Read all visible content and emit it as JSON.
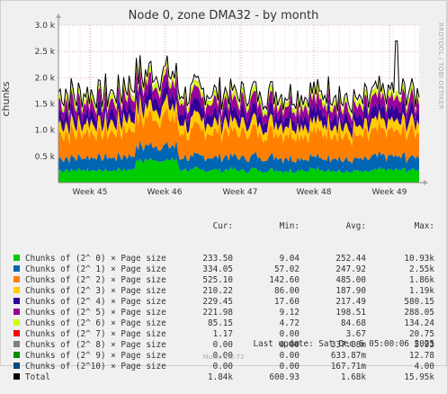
{
  "chart_data": {
    "type": "area",
    "title": "Node 0, zone DMA32 - by month",
    "ylabel": "chunks",
    "ylim": [
      0,
      3000
    ],
    "yticks": [
      {
        "value": 500,
        "label": "0.5 k"
      },
      {
        "value": 1000,
        "label": "1.0 k"
      },
      {
        "value": 1500,
        "label": "1.5 k"
      },
      {
        "value": 2000,
        "label": "2.0 k"
      },
      {
        "value": 2500,
        "label": "2.5 k"
      },
      {
        "value": 3000,
        "label": "3.0 k"
      }
    ],
    "xticks": [
      "Week 45",
      "Week 46",
      "Week 47",
      "Week 48",
      "Week 49"
    ],
    "grid": true,
    "stacked": true,
    "series": [
      {
        "name": "Chunks of (2^ 0) × Page size",
        "color": "#00cc00",
        "cur": "233.50",
        "min": "9.04",
        "avg": "252.44",
        "max": "10.93k",
        "base": 240
      },
      {
        "name": "Chunks of (2^ 1) × Page size",
        "color": "#0066b3",
        "cur": "334.05",
        "min": "57.02",
        "avg": "247.92",
        "max": "2.55k",
        "base": 245
      },
      {
        "name": "Chunks of (2^ 2) × Page size",
        "color": "#ff8000",
        "cur": "525.10",
        "min": "142.60",
        "avg": "485.00",
        "max": "1.86k",
        "base": 480
      },
      {
        "name": "Chunks of (2^ 3) × Page size",
        "color": "#ffcc00",
        "cur": "210.22",
        "min": "86.00",
        "avg": "187.90",
        "max": "1.19k",
        "base": 185
      },
      {
        "name": "Chunks of (2^ 4) × Page size",
        "color": "#330099",
        "cur": "229.45",
        "min": "17.60",
        "avg": "217.49",
        "max": "580.15",
        "base": 215
      },
      {
        "name": "Chunks of (2^ 5) × Page size",
        "color": "#990099",
        "cur": "221.98",
        "min": "9.12",
        "avg": "198.51",
        "max": "288.05",
        "base": 200
      },
      {
        "name": "Chunks of (2^ 6) × Page size",
        "color": "#ccff00",
        "cur": "85.15",
        "min": "4.72",
        "avg": "84.68",
        "max": "134.24",
        "base": 85
      },
      {
        "name": "Chunks of (2^ 7) × Page size",
        "color": "#ff0000",
        "cur": "1.17",
        "min": "0.00",
        "avg": "3.67",
        "max": "20.75",
        "base": 4
      },
      {
        "name": "Chunks of (2^ 8) × Page size",
        "color": "#808080",
        "cur": "0.00",
        "min": "0.00",
        "avg": "337.08m",
        "max": "5.93",
        "base": 0.3
      },
      {
        "name": "Chunks of (2^ 9) × Page size",
        "color": "#008f00",
        "cur": "0.00",
        "min": "0.00",
        "avg": "633.87m",
        "max": "12.78",
        "base": 0.6
      },
      {
        "name": "Chunks of (2^10) × Page size",
        "color": "#00487d",
        "cur": "0.00",
        "min": "0.00",
        "avg": "167.71m",
        "max": "4.00",
        "base": 0.2
      }
    ],
    "total": {
      "name": "Total",
      "color": "#000000",
      "cur": "1.84k",
      "min": "600.93",
      "avg": "1.68k",
      "max": "15.95k"
    },
    "columns": [
      "Cur:",
      "Min:",
      "Avg:",
      "Max:"
    ]
  },
  "last_update": "Last update: Sat Dec  6 05:00:06 2025",
  "watermark": "RRDTOOL / TOBI OETIKER",
  "footer": "Munin 2.0.73"
}
